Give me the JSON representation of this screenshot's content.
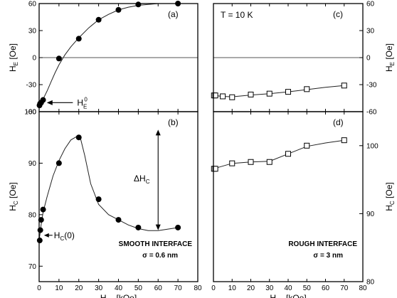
{
  "chart_data": [
    {
      "id": "a",
      "panel_label": "(a)",
      "type": "scatter",
      "xlim": [
        0,
        80
      ],
      "ylim": [
        -60,
        60
      ],
      "y_ticks": [
        "60",
        "30",
        "0",
        "-30",
        "-60"
      ],
      "y_tick_values": [
        60,
        30,
        0,
        -30,
        -60
      ],
      "ylabel": "H_E [Oe]",
      "ylabel_main": "H",
      "ylabel_sub": "E",
      "ylabel_unit": " [Oe]",
      "zero_line": true,
      "marker": "filled-circle",
      "x": [
        0.2,
        0.5,
        1,
        2,
        10,
        20,
        30,
        40,
        50,
        70
      ],
      "y": [
        -53,
        -51,
        -50,
        -47,
        -1,
        21,
        42,
        53,
        59,
        60
      ],
      "fit_x": [
        0,
        1,
        2,
        4,
        6,
        8,
        10,
        13,
        16,
        20,
        25,
        30,
        35,
        40,
        45,
        50,
        55,
        60,
        65,
        70
      ],
      "fit_y": [
        -53,
        -50,
        -46,
        -37,
        -27,
        -17,
        -8,
        3,
        12,
        22,
        33,
        42,
        48,
        53,
        56,
        58,
        59,
        60,
        60,
        60
      ],
      "annotation_main": "H",
      "annotation_sub": "E",
      "annotation_sup": "0",
      "annotation_point": [
        1,
        -50
      ]
    },
    {
      "id": "b",
      "panel_label": "(b)",
      "type": "scatter",
      "xlim": [
        0,
        80
      ],
      "ylim": [
        67,
        100
      ],
      "x_ticks": [
        "0",
        "10",
        "20",
        "30",
        "40",
        "50",
        "60",
        "70",
        "80"
      ],
      "x_tick_values": [
        0,
        10,
        20,
        30,
        40,
        50,
        60,
        70,
        80
      ],
      "y_ticks": [
        "100",
        "90",
        "80",
        "70"
      ],
      "y_tick_values": [
        100,
        90,
        80,
        70
      ],
      "ylabel": "H_C [Oe]",
      "ylabel_main": "H",
      "ylabel_sub": "C",
      "ylabel_unit": " [Oe]",
      "xlabel": "H_FC [kOe]",
      "xlabel_main": "H",
      "xlabel_sub": "FC",
      "xlabel_unit": " [kOe]",
      "marker": "filled-circle",
      "x": [
        0.3,
        0.6,
        1,
        2,
        10,
        20,
        30,
        40,
        50,
        70
      ],
      "y": [
        75,
        77,
        79,
        81,
        90,
        95,
        83,
        79,
        77.5,
        77.5
      ],
      "fit_x": [
        0,
        1,
        2,
        4,
        7,
        10,
        13,
        16,
        19,
        21,
        23,
        26,
        30,
        35,
        40,
        45,
        50,
        55,
        60,
        65,
        70
      ],
      "fit_y": [
        75,
        78,
        80.5,
        83.5,
        87.5,
        90.5,
        92.8,
        94.5,
        95.2,
        94.6,
        91.5,
        86,
        82,
        80,
        79,
        78,
        77.3,
        76.9,
        76.9,
        77.2,
        77.5
      ],
      "annotation": "H_C(0)",
      "annotation_main": "H",
      "annotation_sub": "C",
      "annotation_rest": "(0)",
      "annotation_point": [
        1,
        76
      ],
      "delta_label_main": "ΔH",
      "delta_label_sub": "C",
      "interface_label": "SMOOTH INTERFACE",
      "interface_sigma": "σ = 0.6 nm"
    },
    {
      "id": "c",
      "panel_label": "(c)",
      "type": "scatter",
      "xlim": [
        0,
        80
      ],
      "ylim": [
        -60,
        60
      ],
      "y_ticks": [
        "60",
        "30",
        "0",
        "-30",
        "-60"
      ],
      "y_tick_values": [
        60,
        30,
        0,
        -30,
        -60
      ],
      "ylabel": "H_E [Oe]",
      "ylabel_main": "H",
      "ylabel_sub": "E",
      "ylabel_unit": " [Oe]",
      "zero_line": true,
      "marker": "open-square",
      "x": [
        0.3,
        1,
        5,
        10,
        20,
        30,
        40,
        50,
        70
      ],
      "y": [
        -42,
        -42,
        -43,
        -44,
        -41,
        -40,
        -38,
        -35,
        -31
      ],
      "fit_x": [
        0,
        5,
        10,
        20,
        30,
        40,
        50,
        60,
        70
      ],
      "fit_y": [
        -42,
        -43,
        -43.5,
        -41.5,
        -40,
        -38,
        -35.5,
        -33,
        -31
      ],
      "temperature_label": "T = 10 K"
    },
    {
      "id": "d",
      "panel_label": "(d)",
      "type": "scatter",
      "xlim": [
        0,
        80
      ],
      "ylim": [
        80,
        105
      ],
      "x_ticks": [
        "0",
        "10",
        "20",
        "30",
        "40",
        "50",
        "60",
        "70",
        "80"
      ],
      "x_tick_values": [
        0,
        10,
        20,
        30,
        40,
        50,
        60,
        70,
        80
      ],
      "y_ticks": [
        "100",
        "90",
        "80"
      ],
      "y_tick_values": [
        100,
        90,
        80
      ],
      "ylabel": "H_C [Oe]",
      "ylabel_main": "H",
      "ylabel_sub": "C",
      "ylabel_unit": " [Oe]",
      "xlabel": "H_FC [kOe]",
      "xlabel_main": "H",
      "xlabel_sub": "FC",
      "xlabel_unit": " [kOe]",
      "marker": "open-square",
      "x": [
        0.3,
        1,
        10,
        20,
        30,
        40,
        50,
        70
      ],
      "y": [
        96.6,
        96.6,
        97.4,
        97.6,
        97.6,
        98.8,
        100,
        100.8
      ],
      "fit_x": [
        0,
        10,
        20,
        30,
        40,
        50,
        60,
        70
      ],
      "fit_y": [
        96.6,
        97.4,
        97.6,
        97.7,
        98.8,
        99.9,
        100.4,
        100.8
      ],
      "interface_label": "ROUGH INTERFACE",
      "interface_sigma": "σ = 3 nm"
    }
  ]
}
